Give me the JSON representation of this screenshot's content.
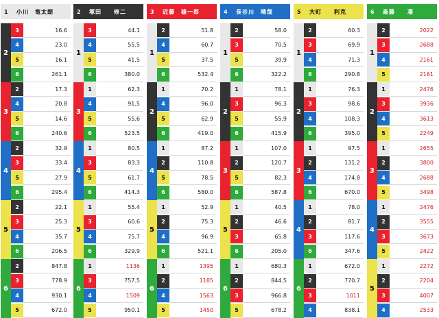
{
  "colors": {
    "lane1": "#e8e8e8",
    "lane2": "#333333",
    "lane3": "#e8232f",
    "lane4": "#1e6fc5",
    "lane5": "#ece24b",
    "lane6": "#2faa3c",
    "value_default": "#222222",
    "value_red": "#d11a1a"
  },
  "panels": [
    {
      "header_number": "1",
      "header_name": "小川　竜太朗",
      "groups": [
        {
          "second": "2",
          "rows": [
            {
              "third": "3",
              "value": "16.6",
              "red": false
            },
            {
              "third": "4",
              "value": "23.0",
              "red": false
            },
            {
              "third": "5",
              "value": "16.1",
              "red": false
            },
            {
              "third": "6",
              "value": "261.1",
              "red": false
            }
          ]
        },
        {
          "second": "3",
          "rows": [
            {
              "third": "2",
              "value": "17.3",
              "red": false
            },
            {
              "third": "4",
              "value": "20.8",
              "red": false
            },
            {
              "third": "5",
              "value": "14.6",
              "red": false
            },
            {
              "third": "6",
              "value": "240.6",
              "red": false
            }
          ]
        },
        {
          "second": "4",
          "rows": [
            {
              "third": "2",
              "value": "32.9",
              "red": false
            },
            {
              "third": "3",
              "value": "33.4",
              "red": false
            },
            {
              "third": "5",
              "value": "27.9",
              "red": false
            },
            {
              "third": "6",
              "value": "295.4",
              "red": false
            }
          ]
        },
        {
          "second": "5",
          "rows": [
            {
              "third": "2",
              "value": "22.1",
              "red": false
            },
            {
              "third": "3",
              "value": "25.3",
              "red": false
            },
            {
              "third": "4",
              "value": "35.7",
              "red": false
            },
            {
              "third": "6",
              "value": "206.5",
              "red": false
            }
          ]
        },
        {
          "second": "6",
          "rows": [
            {
              "third": "2",
              "value": "847.8",
              "red": false
            },
            {
              "third": "3",
              "value": "778.9",
              "red": false
            },
            {
              "third": "4",
              "value": "930.1",
              "red": false
            },
            {
              "third": "5",
              "value": "672.0",
              "red": false
            }
          ]
        }
      ]
    },
    {
      "header_number": "2",
      "header_name": "塚田　　修二",
      "groups": [
        {
          "second": "1",
          "rows": [
            {
              "third": "3",
              "value": "44.1",
              "red": false
            },
            {
              "third": "4",
              "value": "55.5",
              "red": false
            },
            {
              "third": "5",
              "value": "41.5",
              "red": false
            },
            {
              "third": "6",
              "value": "380.0",
              "red": false
            }
          ]
        },
        {
          "second": "3",
          "rows": [
            {
              "third": "1",
              "value": "62.3",
              "red": false
            },
            {
              "third": "4",
              "value": "91.5",
              "red": false
            },
            {
              "third": "5",
              "value": "55.6",
              "red": false
            },
            {
              "third": "6",
              "value": "523.5",
              "red": false
            }
          ]
        },
        {
          "second": "4",
          "rows": [
            {
              "third": "1",
              "value": "80.5",
              "red": false
            },
            {
              "third": "3",
              "value": "83.3",
              "red": false
            },
            {
              "third": "5",
              "value": "61.7",
              "red": false
            },
            {
              "third": "6",
              "value": "414.3",
              "red": false
            }
          ]
        },
        {
          "second": "5",
          "rows": [
            {
              "third": "1",
              "value": "55.4",
              "red": false
            },
            {
              "third": "3",
              "value": "60.6",
              "red": false
            },
            {
              "third": "4",
              "value": "75.7",
              "red": false
            },
            {
              "third": "6",
              "value": "329.9",
              "red": false
            }
          ]
        },
        {
          "second": "6",
          "rows": [
            {
              "third": "1",
              "value": "1136",
              "red": true
            },
            {
              "third": "3",
              "value": "757.5",
              "red": false
            },
            {
              "third": "4",
              "value": "1509",
              "red": true
            },
            {
              "third": "5",
              "value": "950.1",
              "red": false
            }
          ]
        }
      ]
    },
    {
      "header_number": "3",
      "header_name": "近藤　雄一郎",
      "groups": [
        {
          "second": "1",
          "rows": [
            {
              "third": "2",
              "value": "51.8",
              "red": false
            },
            {
              "third": "4",
              "value": "60.7",
              "red": false
            },
            {
              "third": "5",
              "value": "37.5",
              "red": false
            },
            {
              "third": "6",
              "value": "532.4",
              "red": false
            }
          ]
        },
        {
          "second": "2",
          "rows": [
            {
              "third": "1",
              "value": "70.2",
              "red": false
            },
            {
              "third": "4",
              "value": "96.0",
              "red": false
            },
            {
              "third": "5",
              "value": "62.9",
              "red": false
            },
            {
              "third": "6",
              "value": "419.0",
              "red": false
            }
          ]
        },
        {
          "second": "4",
          "rows": [
            {
              "third": "1",
              "value": "87.2",
              "red": false
            },
            {
              "third": "2",
              "value": "110.8",
              "red": false
            },
            {
              "third": "5",
              "value": "78.5",
              "red": false
            },
            {
              "third": "6",
              "value": "580.0",
              "red": false
            }
          ]
        },
        {
          "second": "5",
          "rows": [
            {
              "third": "1",
              "value": "52.9",
              "red": false
            },
            {
              "third": "2",
              "value": "75.3",
              "red": false
            },
            {
              "third": "4",
              "value": "96.9",
              "red": false
            },
            {
              "third": "6",
              "value": "521.1",
              "red": false
            }
          ]
        },
        {
          "second": "6",
          "rows": [
            {
              "third": "1",
              "value": "1395",
              "red": true
            },
            {
              "third": "2",
              "value": "1185",
              "red": true
            },
            {
              "third": "4",
              "value": "1563",
              "red": true
            },
            {
              "third": "5",
              "value": "1450",
              "red": true
            }
          ]
        }
      ]
    },
    {
      "header_number": "4",
      "header_name": "長谷川　晴哉",
      "groups": [
        {
          "second": "1",
          "rows": [
            {
              "third": "2",
              "value": "58.0",
              "red": false
            },
            {
              "third": "3",
              "value": "70.5",
              "red": false
            },
            {
              "third": "5",
              "value": "39.9",
              "red": false
            },
            {
              "third": "6",
              "value": "322.2",
              "red": false
            }
          ]
        },
        {
          "second": "2",
          "rows": [
            {
              "third": "1",
              "value": "78.1",
              "red": false
            },
            {
              "third": "3",
              "value": "96.3",
              "red": false
            },
            {
              "third": "5",
              "value": "55.9",
              "red": false
            },
            {
              "third": "6",
              "value": "415.9",
              "red": false
            }
          ]
        },
        {
          "second": "3",
          "rows": [
            {
              "third": "1",
              "value": "107.0",
              "red": false
            },
            {
              "third": "2",
              "value": "120.7",
              "red": false
            },
            {
              "third": "5",
              "value": "82.3",
              "red": false
            },
            {
              "third": "6",
              "value": "587.8",
              "red": false
            }
          ]
        },
        {
          "second": "5",
          "rows": [
            {
              "third": "1",
              "value": "40.5",
              "red": false
            },
            {
              "third": "2",
              "value": "46.6",
              "red": false
            },
            {
              "third": "3",
              "value": "65.8",
              "red": false
            },
            {
              "third": "6",
              "value": "205.0",
              "red": false
            }
          ]
        },
        {
          "second": "6",
          "rows": [
            {
              "third": "1",
              "value": "680.3",
              "red": false
            },
            {
              "third": "2",
              "value": "844.5",
              "red": false
            },
            {
              "third": "3",
              "value": "966.8",
              "red": false
            },
            {
              "third": "5",
              "value": "678.2",
              "red": false
            }
          ]
        }
      ]
    },
    {
      "header_number": "5",
      "header_name": "大町　　利克",
      "groups": [
        {
          "second": "1",
          "rows": [
            {
              "third": "2",
              "value": "60.3",
              "red": false
            },
            {
              "third": "3",
              "value": "69.9",
              "red": false
            },
            {
              "third": "4",
              "value": "71.3",
              "red": false
            },
            {
              "third": "6",
              "value": "290.8",
              "red": false
            }
          ]
        },
        {
          "second": "2",
          "rows": [
            {
              "third": "1",
              "value": "76.3",
              "red": false
            },
            {
              "third": "3",
              "value": "98.6",
              "red": false
            },
            {
              "third": "4",
              "value": "108.3",
              "red": false
            },
            {
              "third": "6",
              "value": "395.0",
              "red": false
            }
          ]
        },
        {
          "second": "3",
          "rows": [
            {
              "third": "1",
              "value": "97.5",
              "red": false
            },
            {
              "third": "2",
              "value": "131.2",
              "red": false
            },
            {
              "third": "4",
              "value": "174.8",
              "red": false
            },
            {
              "third": "6",
              "value": "670.0",
              "red": false
            }
          ]
        },
        {
          "second": "4",
          "rows": [
            {
              "third": "1",
              "value": "78.0",
              "red": false
            },
            {
              "third": "2",
              "value": "81.7",
              "red": false
            },
            {
              "third": "3",
              "value": "117.6",
              "red": false
            },
            {
              "third": "6",
              "value": "347.6",
              "red": false
            }
          ]
        },
        {
          "second": "6",
          "rows": [
            {
              "third": "1",
              "value": "672.0",
              "red": false
            },
            {
              "third": "2",
              "value": "770.7",
              "red": false
            },
            {
              "third": "3",
              "value": "1011",
              "red": true
            },
            {
              "third": "4",
              "value": "838.1",
              "red": false
            }
          ]
        }
      ]
    },
    {
      "header_number": "6",
      "header_name": "斎藤　　凛",
      "groups": [
        {
          "second": "1",
          "rows": [
            {
              "third": "2",
              "value": "2022",
              "red": true
            },
            {
              "third": "3",
              "value": "2688",
              "red": true
            },
            {
              "third": "4",
              "value": "2161",
              "red": true
            },
            {
              "third": "5",
              "value": "2161",
              "red": true
            }
          ]
        },
        {
          "second": "2",
          "rows": [
            {
              "third": "1",
              "value": "2476",
              "red": true
            },
            {
              "third": "3",
              "value": "3936",
              "red": true
            },
            {
              "third": "4",
              "value": "3613",
              "red": true
            },
            {
              "third": "5",
              "value": "2249",
              "red": true
            }
          ]
        },
        {
          "second": "3",
          "rows": [
            {
              "third": "1",
              "value": "2655",
              "red": true
            },
            {
              "third": "2",
              "value": "3800",
              "red": true
            },
            {
              "third": "4",
              "value": "2688",
              "red": true
            },
            {
              "third": "5",
              "value": "3498",
              "red": true
            }
          ]
        },
        {
          "second": "4",
          "rows": [
            {
              "third": "1",
              "value": "2476",
              "red": true
            },
            {
              "third": "2",
              "value": "3555",
              "red": true
            },
            {
              "third": "3",
              "value": "3673",
              "red": true
            },
            {
              "third": "5",
              "value": "2422",
              "red": true
            }
          ]
        },
        {
          "second": "5",
          "rows": [
            {
              "third": "1",
              "value": "2272",
              "red": true
            },
            {
              "third": "2",
              "value": "2204",
              "red": true
            },
            {
              "third": "3",
              "value": "4007",
              "red": true
            },
            {
              "third": "4",
              "value": "2533",
              "red": true
            }
          ]
        }
      ]
    }
  ]
}
